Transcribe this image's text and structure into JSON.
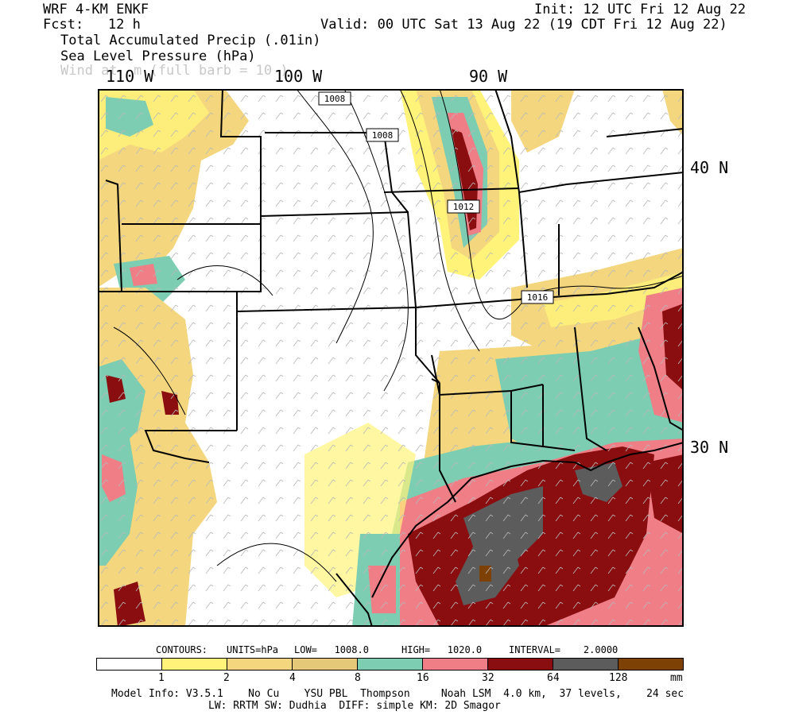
{
  "header": {
    "model": "WRF 4-KM ENKF",
    "init": "Init: 12 UTC Fri 12 Aug 22",
    "fcst_label": "Fcst:   12 h",
    "valid": "Valid: 00 UTC Sat 13 Aug 22 (19 CDT Fri 12 Aug 22)",
    "field1": "Total Accumulated Precip (.01in)",
    "field2": "Sea Level Pressure (hPa)",
    "field3": "Wind at  m (full barb = 10 )"
  },
  "axes": {
    "longitudes": [
      "110 W",
      "100 W",
      "90 W"
    ],
    "latitudes": [
      "40 N",
      "30 N"
    ]
  },
  "isobars": [
    "1008",
    "1008",
    "1012",
    "1016"
  ],
  "contours_info": {
    "label": "CONTOURS:",
    "units": "UNITS=hPa",
    "low": "LOW=   1008.0",
    "high": "HIGH=   1020.0",
    "interval": "INTERVAL=    2.0000"
  },
  "colorbar": {
    "colors": [
      "#ffffff",
      "#fff37a",
      "#f3d67e",
      "#e5c878",
      "#7ccdb1",
      "#f07e86",
      "#8a0d10",
      "#5c5c5c",
      "#7d4106"
    ],
    "ticks": [
      "1",
      "2",
      "4",
      "8",
      "16",
      "32",
      "64",
      "128"
    ],
    "unit": "mm"
  },
  "footer": {
    "line1": "Model Info: V3.5.1    No Cu    YSU PBL  Thompson     Noah LSM  4.0 km,  37 levels,    24 sec",
    "line2": "LW: RRTM SW: Dudhia  DIFF: simple KM: 2D Smagor"
  }
}
